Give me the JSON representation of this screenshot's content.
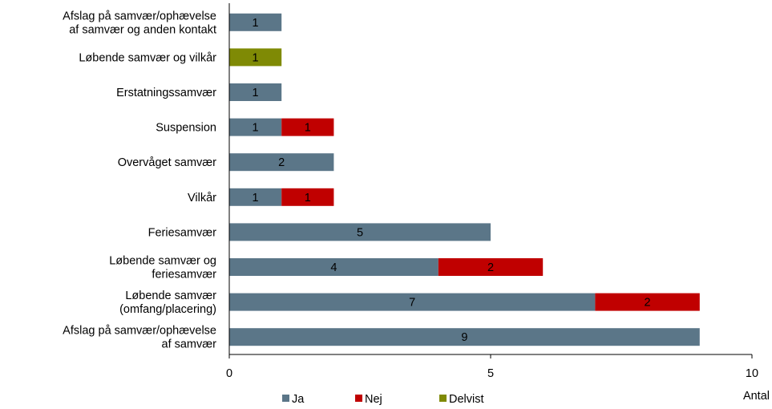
{
  "chart_data": {
    "type": "bar",
    "orientation": "horizontal",
    "stacked": true,
    "categories": [
      [
        "Afslag på samvær/ophævelse",
        "af samvær og anden kontakt"
      ],
      [
        "Løbende samvær og vilkår"
      ],
      [
        "Erstatningssamvær"
      ],
      [
        "Suspension"
      ],
      [
        "Overvåget samvær"
      ],
      [
        "Vilkår"
      ],
      [
        "Feriesamvær"
      ],
      [
        "Løbende samvær og",
        "feriesamvær"
      ],
      [
        "Løbende samvær",
        "(omfang/placering)"
      ],
      [
        "Afslag på samvær/ophævelse",
        "af samvær"
      ]
    ],
    "series": [
      {
        "name": "Ja",
        "color": "#5b7688",
        "values": [
          1,
          0,
          1,
          1,
          2,
          1,
          5,
          4,
          7,
          9
        ]
      },
      {
        "name": "Nej",
        "color": "#c00000",
        "values": [
          0,
          0,
          0,
          1,
          0,
          1,
          0,
          2,
          2,
          0
        ]
      },
      {
        "name": "Delvist",
        "color": "#7f8a05",
        "values": [
          0,
          1,
          0,
          0,
          0,
          0,
          0,
          0,
          0,
          0
        ]
      }
    ],
    "xlabel": "Antal",
    "xlim": [
      0,
      10
    ],
    "xticks": [
      0,
      5,
      10
    ],
    "grid": false,
    "legend_position": "bottom",
    "data_labels": true
  }
}
